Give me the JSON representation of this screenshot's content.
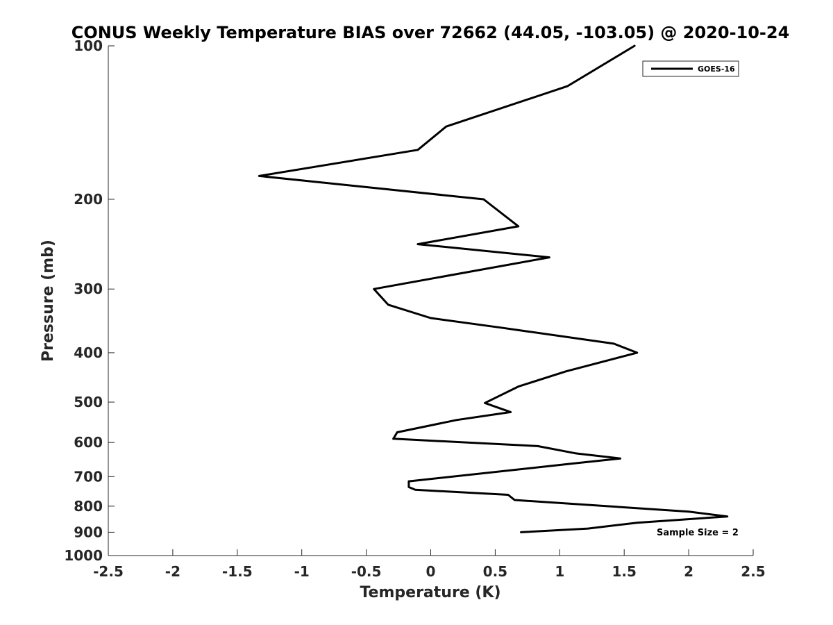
{
  "chart_data": {
    "type": "line",
    "title": "CONUS Weekly Temperature BIAS over 72662 (44.05, -103.05) @ 2020-10-24",
    "xlabel": "Temperature (K)",
    "ylabel": "Pressure (mb)",
    "xlim": [
      -2.5,
      2.5
    ],
    "ylim": [
      100,
      1000
    ],
    "y_scale": "log",
    "y_reversed": true,
    "x_ticks": [
      -2.5,
      -2,
      -1.5,
      -1,
      -0.5,
      0,
      0.5,
      1,
      1.5,
      2,
      2.5
    ],
    "x_tick_labels": [
      "-2.5",
      "-2",
      "-1.5",
      "-1",
      "-0.5",
      "0",
      "0.5",
      "1",
      "1.5",
      "2",
      "2.5"
    ],
    "y_ticks": [
      100,
      200,
      300,
      400,
      500,
      600,
      700,
      800,
      900,
      1000
    ],
    "y_tick_labels": [
      "100",
      "200",
      "300",
      "400",
      "500",
      "600",
      "700",
      "800",
      "900",
      "1000"
    ],
    "grid": false,
    "legend_position": "top-right",
    "annotation": "Sample Size = 2",
    "series": [
      {
        "name": "GOES-16",
        "color": "#000000",
        "points": [
          {
            "x": 0.7,
            "p": 900
          },
          {
            "x": 1.22,
            "p": 885
          },
          {
            "x": 1.6,
            "p": 862
          },
          {
            "x": 2.3,
            "p": 838
          },
          {
            "x": 2.0,
            "p": 820
          },
          {
            "x": 0.65,
            "p": 778
          },
          {
            "x": 0.6,
            "p": 760
          },
          {
            "x": -0.12,
            "p": 743
          },
          {
            "x": -0.17,
            "p": 734
          },
          {
            "x": -0.17,
            "p": 715
          },
          {
            "x": 1.1,
            "p": 660
          },
          {
            "x": 1.47,
            "p": 645
          },
          {
            "x": 1.12,
            "p": 630
          },
          {
            "x": 0.83,
            "p": 610
          },
          {
            "x": -0.29,
            "p": 590
          },
          {
            "x": -0.26,
            "p": 573
          },
          {
            "x": 0.2,
            "p": 542
          },
          {
            "x": 0.62,
            "p": 523
          },
          {
            "x": 0.42,
            "p": 502
          },
          {
            "x": 0.68,
            "p": 466
          },
          {
            "x": 1.05,
            "p": 435
          },
          {
            "x": 1.6,
            "p": 400
          },
          {
            "x": 1.42,
            "p": 384
          },
          {
            "x": 0.54,
            "p": 357
          },
          {
            "x": 0.0,
            "p": 342
          },
          {
            "x": -0.33,
            "p": 322
          },
          {
            "x": -0.44,
            "p": 300
          },
          {
            "x": 0.92,
            "p": 260
          },
          {
            "x": -0.1,
            "p": 245
          },
          {
            "x": 0.68,
            "p": 226
          },
          {
            "x": 0.41,
            "p": 200
          },
          {
            "x": -1.33,
            "p": 180
          },
          {
            "x": -0.1,
            "p": 160
          },
          {
            "x": 0.12,
            "p": 144
          },
          {
            "x": 1.06,
            "p": 120
          },
          {
            "x": 1.58,
            "p": 100
          }
        ]
      }
    ]
  }
}
